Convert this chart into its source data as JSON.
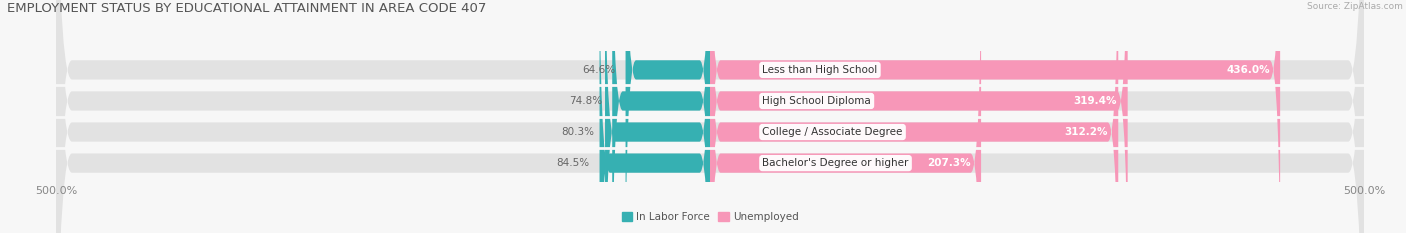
{
  "title": "EMPLOYMENT STATUS BY EDUCATIONAL ATTAINMENT IN AREA CODE 407",
  "source": "Source: ZipAtlas.com",
  "categories": [
    "Less than High School",
    "High School Diploma",
    "College / Associate Degree",
    "Bachelor's Degree or higher"
  ],
  "in_labor_force": [
    64.6,
    74.8,
    80.3,
    84.5
  ],
  "unemployed": [
    436.0,
    319.4,
    312.2,
    207.3
  ],
  "xlim_left": -500,
  "xlim_right": 500,
  "x_tick_labels_left": "500.0%",
  "x_tick_labels_right": "500.0%",
  "bar_color_labor": "#36b0b2",
  "bar_color_unemployed": "#f797b8",
  "bar_bg_color": "#e2e2e2",
  "legend_labor": "In Labor Force",
  "legend_unemployed": "Unemployed",
  "bg_color": "#f7f7f7",
  "title_fontsize": 9.5,
  "label_fontsize": 7.5,
  "value_fontsize": 7.5,
  "tick_fontsize": 8,
  "source_fontsize": 6.5
}
